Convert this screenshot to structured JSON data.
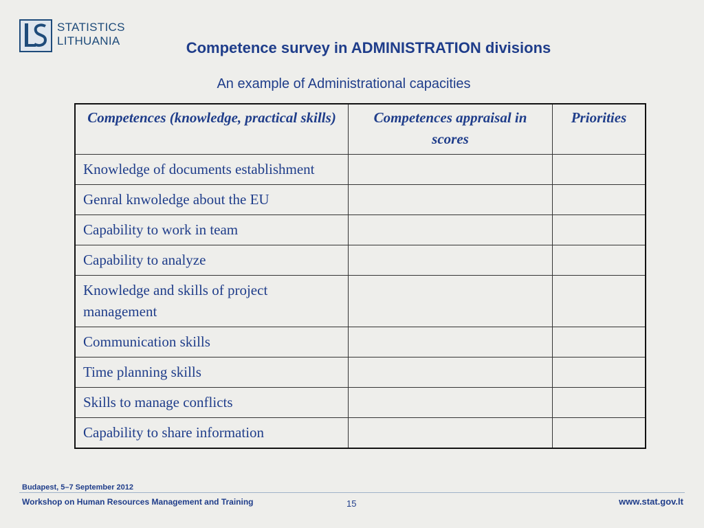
{
  "logo": {
    "line1": "STATISTICS",
    "line2": "LITHUANIA"
  },
  "title": "Competence survey in ADMINISTRATION divisions",
  "subtitle": "An example of Administrational capacities",
  "table": {
    "headers": [
      "Competences (knowledge, practical skills)",
      "Competences appraisal in scores",
      "Priorities"
    ],
    "rows": [
      "Knowledge of documents establishment",
      "Genral knwoledge about the EU",
      "Capability to work in team",
      "Capability to analyze",
      "Knowledge and skills of project management",
      "Communication skills",
      "Time planning skills",
      "Skills to manage conflicts",
      "Capability to share information"
    ]
  },
  "footer": {
    "date": "Budapest, 5–7 September 2012",
    "workshop": "Workshop on Human Resources Management and Training",
    "page": "15",
    "url": "www.stat.gov.lt"
  }
}
